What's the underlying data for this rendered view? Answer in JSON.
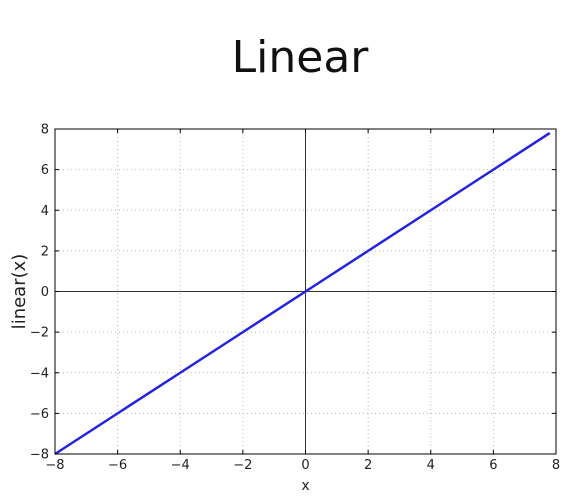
{
  "chart_data": {
    "type": "line",
    "title": "Linear",
    "xlabel": "x",
    "ylabel": "linear(x)",
    "xlim": [
      -8,
      8
    ],
    "ylim": [
      -8,
      8
    ],
    "x_ticks": [
      -8,
      -6,
      -4,
      -2,
      0,
      2,
      4,
      6,
      8
    ],
    "y_ticks": [
      -8,
      -6,
      -4,
      -2,
      0,
      2,
      4,
      6,
      8
    ],
    "x_tick_labels": [
      "−8",
      "−6",
      "−4",
      "−2",
      "0",
      "2",
      "4",
      "6",
      "8"
    ],
    "y_tick_labels": [
      "−8",
      "−6",
      "−4",
      "−2",
      "0",
      "2",
      "4",
      "6",
      "8"
    ],
    "grid": true,
    "zero_lines": true,
    "series": [
      {
        "color": "#2323e0",
        "x": [
          -8,
          -6,
          -4,
          -2,
          0,
          2,
          4,
          6,
          7.8
        ],
        "y": [
          -8,
          -6,
          -4,
          -2,
          0,
          2,
          4,
          6,
          7.8
        ]
      }
    ]
  }
}
